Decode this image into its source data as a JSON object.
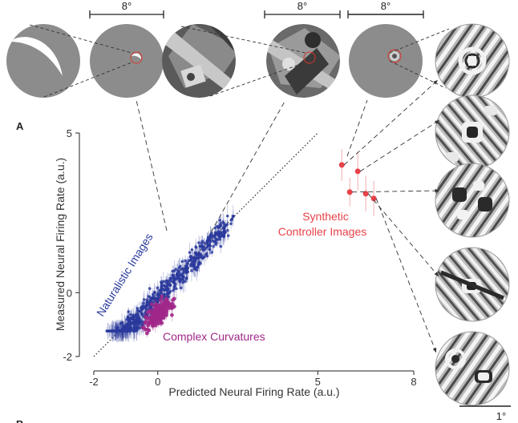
{
  "panel_labels": {
    "a": "A",
    "b": "B"
  },
  "scale_bars": {
    "top_left": "8°",
    "top_middle": "8°",
    "top_right": "8°",
    "bottom_right": "1°"
  },
  "colors": {
    "naturalistic": "#2a3a9c",
    "complex": "#a0288a",
    "synthetic": "#e8424a",
    "synthetic_label": "#e8424a",
    "gray": "#8c8c8c"
  },
  "chart_data": {
    "type": "scatter",
    "title": "",
    "xlabel": "Predicted Neural Firing Rate (a.u.)",
    "ylabel": "Measured Neural Firing Rate (a.u.)",
    "xlim": [
      -2,
      8
    ],
    "ylim": [
      -2,
      5
    ],
    "x_ticks": [
      "-2",
      "0",
      "5",
      "8"
    ],
    "y_ticks": [
      "-2",
      "0",
      "5"
    ],
    "x_tick_values": [
      -2,
      0,
      5,
      8
    ],
    "y_tick_values": [
      -2,
      0,
      5
    ],
    "reference_line": "identity",
    "grid": false,
    "series": [
      {
        "name": "Naturalistic Images",
        "approximate": true,
        "x_range": [
          -1.3,
          2.2
        ],
        "y_range": [
          -1.2,
          2.4
        ],
        "count": 640
      },
      {
        "name": "Complex Curvatures",
        "approximate": true,
        "x_range": [
          -0.5,
          1.2
        ],
        "y_range": [
          -1.5,
          0.3
        ],
        "count": 160
      },
      {
        "name": "Synthetic Controller Images",
        "x": [
          5.75,
          6.25,
          6.0,
          6.5,
          6.75
        ],
        "y": [
          4.0,
          3.8,
          3.15,
          3.1,
          2.95
        ],
        "yerr": [
          0.5,
          0.6,
          0.45,
          0.55,
          0.55
        ]
      }
    ],
    "annotations": [
      "Naturalistic Images",
      "Complex Curvatures",
      "Synthetic",
      "Controller Images"
    ]
  }
}
